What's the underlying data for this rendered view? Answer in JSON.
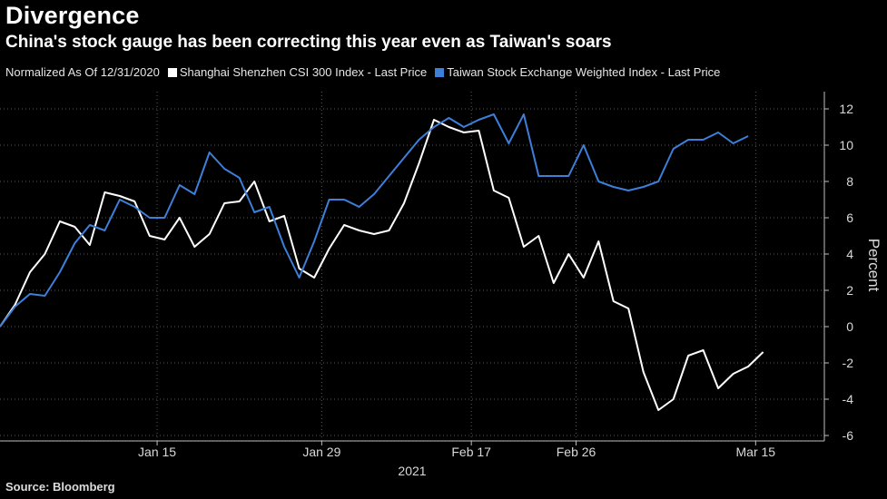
{
  "header": {
    "title": "Divergence",
    "subtitle": "China's stock gauge has been correcting this year even as Taiwan's soars"
  },
  "legend": {
    "note": "Normalized As Of 12/31/2020",
    "items": [
      {
        "label": "Shanghai Shenzhen CSI 300 Index - Last Price",
        "color": "#ffffff"
      },
      {
        "label": "Taiwan Stock Exchange Weighted Index - Last Price",
        "color": "#3d7fd9"
      }
    ]
  },
  "footer": {
    "source": "Source: Bloomberg"
  },
  "chart_data": {
    "type": "line",
    "title": "Divergence",
    "xlabel": "2021",
    "ylabel": "Percent",
    "ylim": [
      -6,
      13
    ],
    "yticks": [
      -6,
      -4,
      -2,
      0,
      2,
      4,
      6,
      8,
      10,
      12
    ],
    "ytick_labels": [
      "-6",
      "-4",
      "-2",
      "0",
      "2",
      "4",
      "6",
      "8",
      "10",
      "12"
    ],
    "xlim": [
      0,
      54
    ],
    "xticks": [
      {
        "pos": 10.5,
        "label": "Jan 15"
      },
      {
        "pos": 21.5,
        "label": "Jan 29"
      },
      {
        "pos": 31.5,
        "label": "Feb 17"
      },
      {
        "pos": 38.5,
        "label": "Feb 26"
      },
      {
        "pos": 50.5,
        "label": "Mar 15"
      }
    ],
    "grid": true,
    "series": [
      {
        "name": "Shanghai Shenzhen CSI 300 Index - Last Price",
        "color": "#ffffff",
        "values": [
          0,
          1.2,
          3.0,
          4.0,
          5.8,
          5.5,
          4.5,
          7.4,
          7.2,
          6.9,
          5.0,
          4.8,
          6.0,
          4.4,
          5.1,
          6.8,
          6.9,
          8.0,
          5.8,
          6.1,
          3.2,
          2.7,
          4.3,
          5.6,
          5.3,
          5.1,
          5.3,
          6.8,
          9.0,
          11.4,
          11.0,
          10.7,
          10.8,
          7.5,
          7.1,
          4.4,
          5.0,
          2.4,
          4.0,
          2.7,
          4.7,
          1.4,
          1.0,
          -2.5,
          -4.6,
          -4.0,
          -1.6,
          -1.3,
          -3.4,
          -2.6,
          -2.2,
          -1.4
        ]
      },
      {
        "name": "Taiwan Stock Exchange Weighted Index - Last Price",
        "color": "#3d7fd9",
        "values": [
          0,
          1.1,
          1.8,
          1.7,
          3.0,
          4.6,
          5.6,
          5.3,
          7.0,
          6.6,
          6.0,
          6.0,
          7.8,
          7.3,
          9.6,
          8.7,
          8.2,
          6.3,
          6.6,
          4.4,
          2.7,
          4.7,
          7.0,
          7.0,
          6.6,
          7.3,
          8.3,
          9.3,
          10.3,
          11.0,
          11.5,
          11.0,
          11.4,
          11.7,
          10.1,
          11.7,
          8.3,
          8.3,
          8.3,
          10.0,
          8.0,
          7.7,
          7.5,
          7.7,
          8.0,
          9.8,
          10.3,
          10.3,
          10.7,
          10.1,
          10.5
        ]
      }
    ]
  }
}
